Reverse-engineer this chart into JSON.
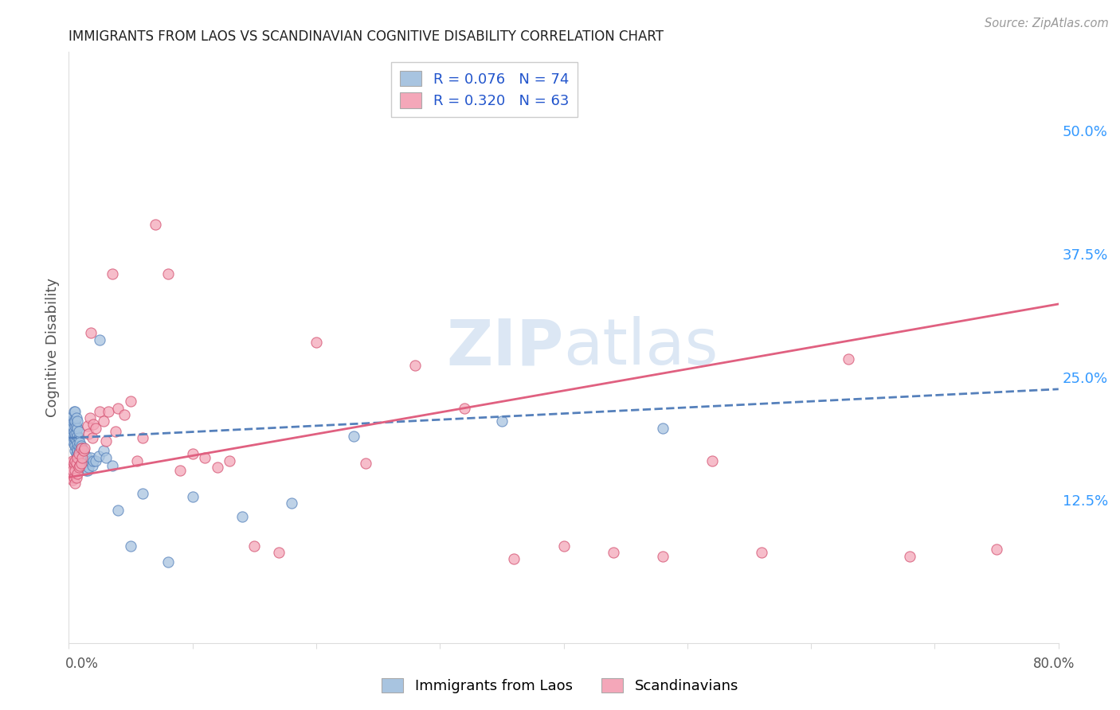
{
  "title": "IMMIGRANTS FROM LAOS VS SCANDINAVIAN COGNITIVE DISABILITY CORRELATION CHART",
  "source": "Source: ZipAtlas.com",
  "ylabel": "Cognitive Disability",
  "ytick_values": [
    0.125,
    0.25,
    0.375,
    0.5
  ],
  "xlim": [
    0.0,
    0.8
  ],
  "ylim": [
    -0.02,
    0.58
  ],
  "series1_label": "Immigrants from Laos",
  "series2_label": "Scandinavians",
  "series1_R": "0.076",
  "series1_N": "74",
  "series2_R": "0.320",
  "series2_N": "63",
  "series1_color": "#a8c4e0",
  "series2_color": "#f4a7b9",
  "series1_edge_color": "#5580bb",
  "series2_edge_color": "#d45070",
  "series1_line_color": "#5580bb",
  "series2_line_color": "#e06080",
  "watermark_color": "#c5d8ee",
  "background_color": "#ffffff",
  "grid_color": "#cccccc",
  "series1_intercept": 0.188,
  "series1_slope": 0.062,
  "series2_intercept": 0.148,
  "series2_slope": 0.22,
  "series1_x": [
    0.001,
    0.002,
    0.002,
    0.002,
    0.003,
    0.003,
    0.003,
    0.003,
    0.003,
    0.004,
    0.004,
    0.004,
    0.004,
    0.004,
    0.005,
    0.005,
    0.005,
    0.005,
    0.005,
    0.005,
    0.005,
    0.006,
    0.006,
    0.006,
    0.006,
    0.006,
    0.006,
    0.007,
    0.007,
    0.007,
    0.007,
    0.007,
    0.007,
    0.008,
    0.008,
    0.008,
    0.008,
    0.008,
    0.009,
    0.009,
    0.009,
    0.01,
    0.01,
    0.01,
    0.011,
    0.011,
    0.011,
    0.012,
    0.012,
    0.013,
    0.014,
    0.014,
    0.015,
    0.016,
    0.017,
    0.018,
    0.019,
    0.02,
    0.022,
    0.024,
    0.025,
    0.028,
    0.03,
    0.035,
    0.04,
    0.05,
    0.06,
    0.08,
    0.1,
    0.14,
    0.18,
    0.23,
    0.35,
    0.48
  ],
  "series1_y": [
    0.19,
    0.195,
    0.2,
    0.205,
    0.185,
    0.19,
    0.2,
    0.205,
    0.21,
    0.182,
    0.19,
    0.195,
    0.205,
    0.215,
    0.175,
    0.18,
    0.188,
    0.192,
    0.2,
    0.205,
    0.215,
    0.172,
    0.178,
    0.185,
    0.193,
    0.2,
    0.208,
    0.17,
    0.175,
    0.182,
    0.19,
    0.198,
    0.205,
    0.168,
    0.173,
    0.18,
    0.188,
    0.195,
    0.168,
    0.175,
    0.183,
    0.165,
    0.172,
    0.18,
    0.162,
    0.17,
    0.178,
    0.16,
    0.175,
    0.162,
    0.155,
    0.17,
    0.155,
    0.158,
    0.165,
    0.168,
    0.16,
    0.165,
    0.165,
    0.17,
    0.288,
    0.175,
    0.168,
    0.16,
    0.115,
    0.078,
    0.132,
    0.062,
    0.128,
    0.108,
    0.122,
    0.19,
    0.205,
    0.198
  ],
  "series2_x": [
    0.001,
    0.002,
    0.002,
    0.003,
    0.003,
    0.003,
    0.004,
    0.004,
    0.005,
    0.005,
    0.005,
    0.006,
    0.006,
    0.007,
    0.007,
    0.008,
    0.008,
    0.009,
    0.01,
    0.01,
    0.011,
    0.012,
    0.013,
    0.015,
    0.016,
    0.017,
    0.018,
    0.019,
    0.02,
    0.022,
    0.025,
    0.028,
    0.03,
    0.032,
    0.035,
    0.038,
    0.04,
    0.045,
    0.05,
    0.055,
    0.06,
    0.07,
    0.08,
    0.09,
    0.1,
    0.11,
    0.12,
    0.13,
    0.15,
    0.17,
    0.2,
    0.24,
    0.28,
    0.32,
    0.36,
    0.4,
    0.44,
    0.48,
    0.52,
    0.56,
    0.63,
    0.68,
    0.75
  ],
  "series2_y": [
    0.155,
    0.148,
    0.162,
    0.145,
    0.155,
    0.165,
    0.148,
    0.162,
    0.142,
    0.155,
    0.165,
    0.148,
    0.162,
    0.152,
    0.168,
    0.158,
    0.172,
    0.16,
    0.162,
    0.178,
    0.168,
    0.175,
    0.178,
    0.2,
    0.192,
    0.208,
    0.295,
    0.188,
    0.202,
    0.198,
    0.215,
    0.205,
    0.185,
    0.215,
    0.355,
    0.195,
    0.218,
    0.212,
    0.225,
    0.165,
    0.188,
    0.405,
    0.355,
    0.155,
    0.172,
    0.168,
    0.158,
    0.165,
    0.078,
    0.072,
    0.285,
    0.162,
    0.262,
    0.218,
    0.065,
    0.078,
    0.072,
    0.068,
    0.165,
    0.072,
    0.268,
    0.068,
    0.075
  ]
}
